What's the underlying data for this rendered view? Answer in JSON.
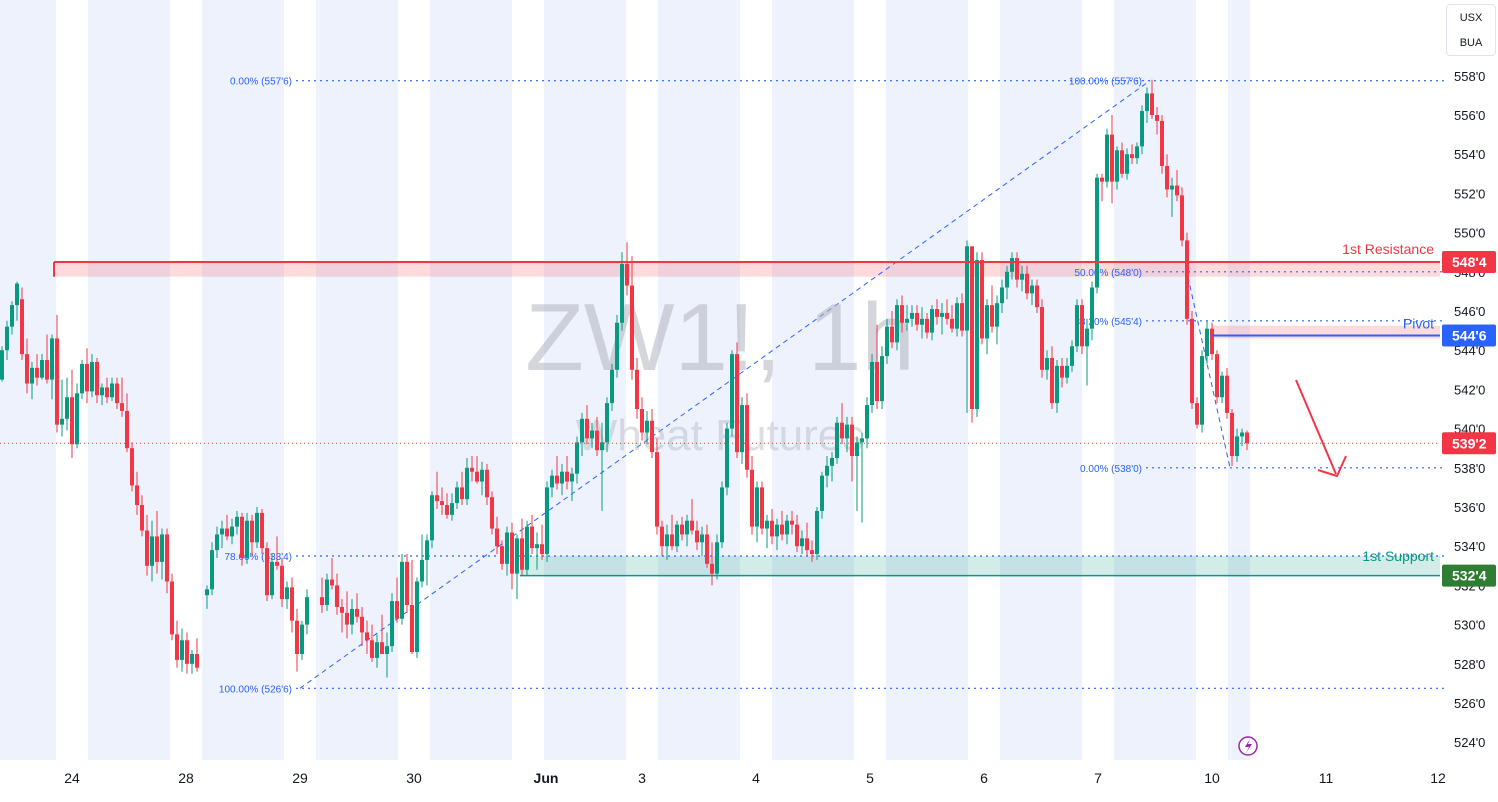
{
  "chart_data": {
    "type": "candlestick",
    "symbol": "ZW1!",
    "interval": "1h",
    "instrument": "Wheat Futures",
    "price_units": [
      "USX",
      "BUA"
    ],
    "y_range": [
      523.5,
      558.5
    ],
    "y_ticks": [
      "524'0",
      "526'0",
      "528'0",
      "530'0",
      "532'0",
      "534'0",
      "536'0",
      "538'0",
      "540'0",
      "542'0",
      "544'0",
      "546'0",
      "548'0",
      "550'0",
      "552'0",
      "554'0",
      "556'0",
      "558'0"
    ],
    "x_ticks": [
      "24",
      "28",
      "29",
      "30",
      "Jun",
      "3",
      "4",
      "5",
      "6",
      "7",
      "10",
      "11",
      "12"
    ],
    "current_price": "539'2",
    "levels": [
      {
        "name": "1st Resistance",
        "label": "548'4",
        "value": 548.5,
        "color": "#f23645"
      },
      {
        "name": "Pivot",
        "label": "544'6",
        "value": 544.75,
        "color": "#2962ff"
      },
      {
        "name": "1st Support",
        "label": "532'4",
        "value": 532.5,
        "color": "#089981"
      }
    ],
    "fib_left": [
      {
        "label": "0.00% (557'6)",
        "value": 557.75
      },
      {
        "label": "78.60% (533'4)",
        "value": 533.5
      },
      {
        "label": "100.00% (526'6)",
        "value": 526.75
      }
    ],
    "fib_right": [
      {
        "label": "100.00% (557'6)",
        "value": 557.75
      },
      {
        "label": "50.00% (548'0)",
        "value": 548.0
      },
      {
        "label": "38.20% (545'4)",
        "value": 545.5
      },
      {
        "label": "0.00% (538'0)",
        "value": 538.0
      }
    ],
    "colors": {
      "up": "#089981",
      "down": "#f23645",
      "session_shade": "#eef2fd",
      "fib": "#2962ff"
    }
  }
}
